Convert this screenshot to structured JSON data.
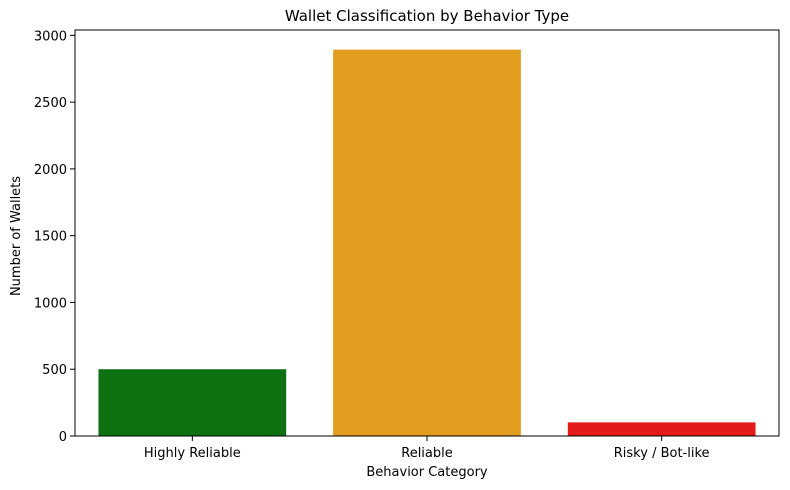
{
  "chart_data": {
    "type": "bar",
    "title": "Wallet Classification by Behavior Type",
    "xlabel": "Behavior Category",
    "ylabel": "Number of Wallets",
    "categories": [
      "Highly Reliable",
      "Reliable",
      "Risky / Bot-like"
    ],
    "values": [
      500,
      2893,
      102
    ],
    "colors": [
      "#0d7011",
      "#e29d1f",
      "#e41b1b"
    ],
    "ylim": [
      0,
      3040
    ],
    "yticks": [
      0,
      500,
      1000,
      1500,
      2000,
      2500,
      3000
    ],
    "grid": false,
    "legend": "none"
  }
}
